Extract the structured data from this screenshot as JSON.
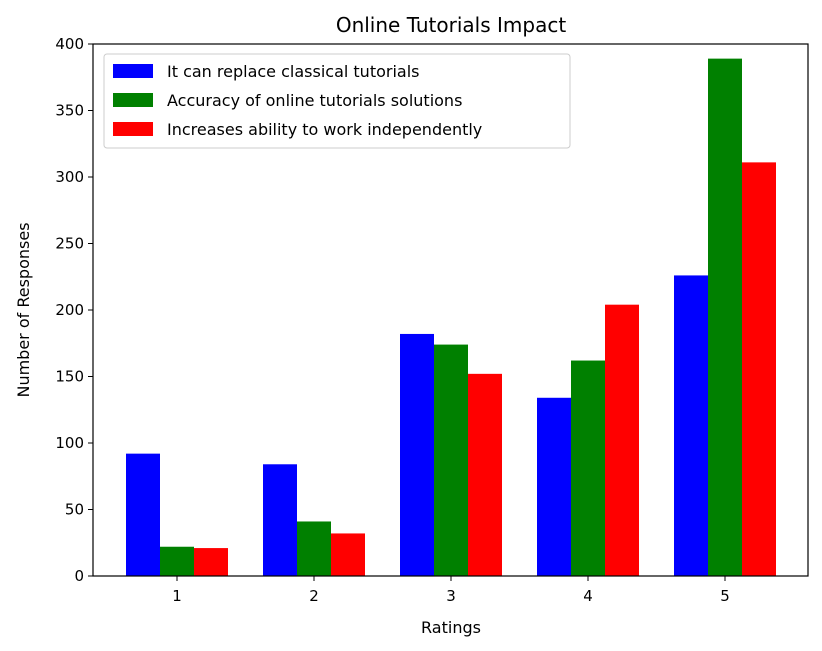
{
  "chart_data": {
    "type": "bar",
    "title": "Online Tutorials Impact",
    "xlabel": "Ratings",
    "ylabel": "Number of Responses",
    "categories": [
      "1",
      "2",
      "3",
      "4",
      "5"
    ],
    "series": [
      {
        "name": "It can replace classical tutorials",
        "color": "#0000ff",
        "values": [
          92,
          84,
          182,
          134,
          226
        ]
      },
      {
        "name": "Accuracy of online tutorials solutions",
        "color": "#008000",
        "values": [
          22,
          41,
          174,
          162,
          389
        ]
      },
      {
        "name": "Increases ability to work independently",
        "color": "#ff0000",
        "values": [
          21,
          32,
          152,
          204,
          311
        ]
      }
    ],
    "ylim": [
      0,
      400
    ],
    "yticks": [
      0,
      50,
      100,
      150,
      200,
      250,
      300,
      350,
      400
    ],
    "grid": false,
    "legend_position": "top-left"
  }
}
